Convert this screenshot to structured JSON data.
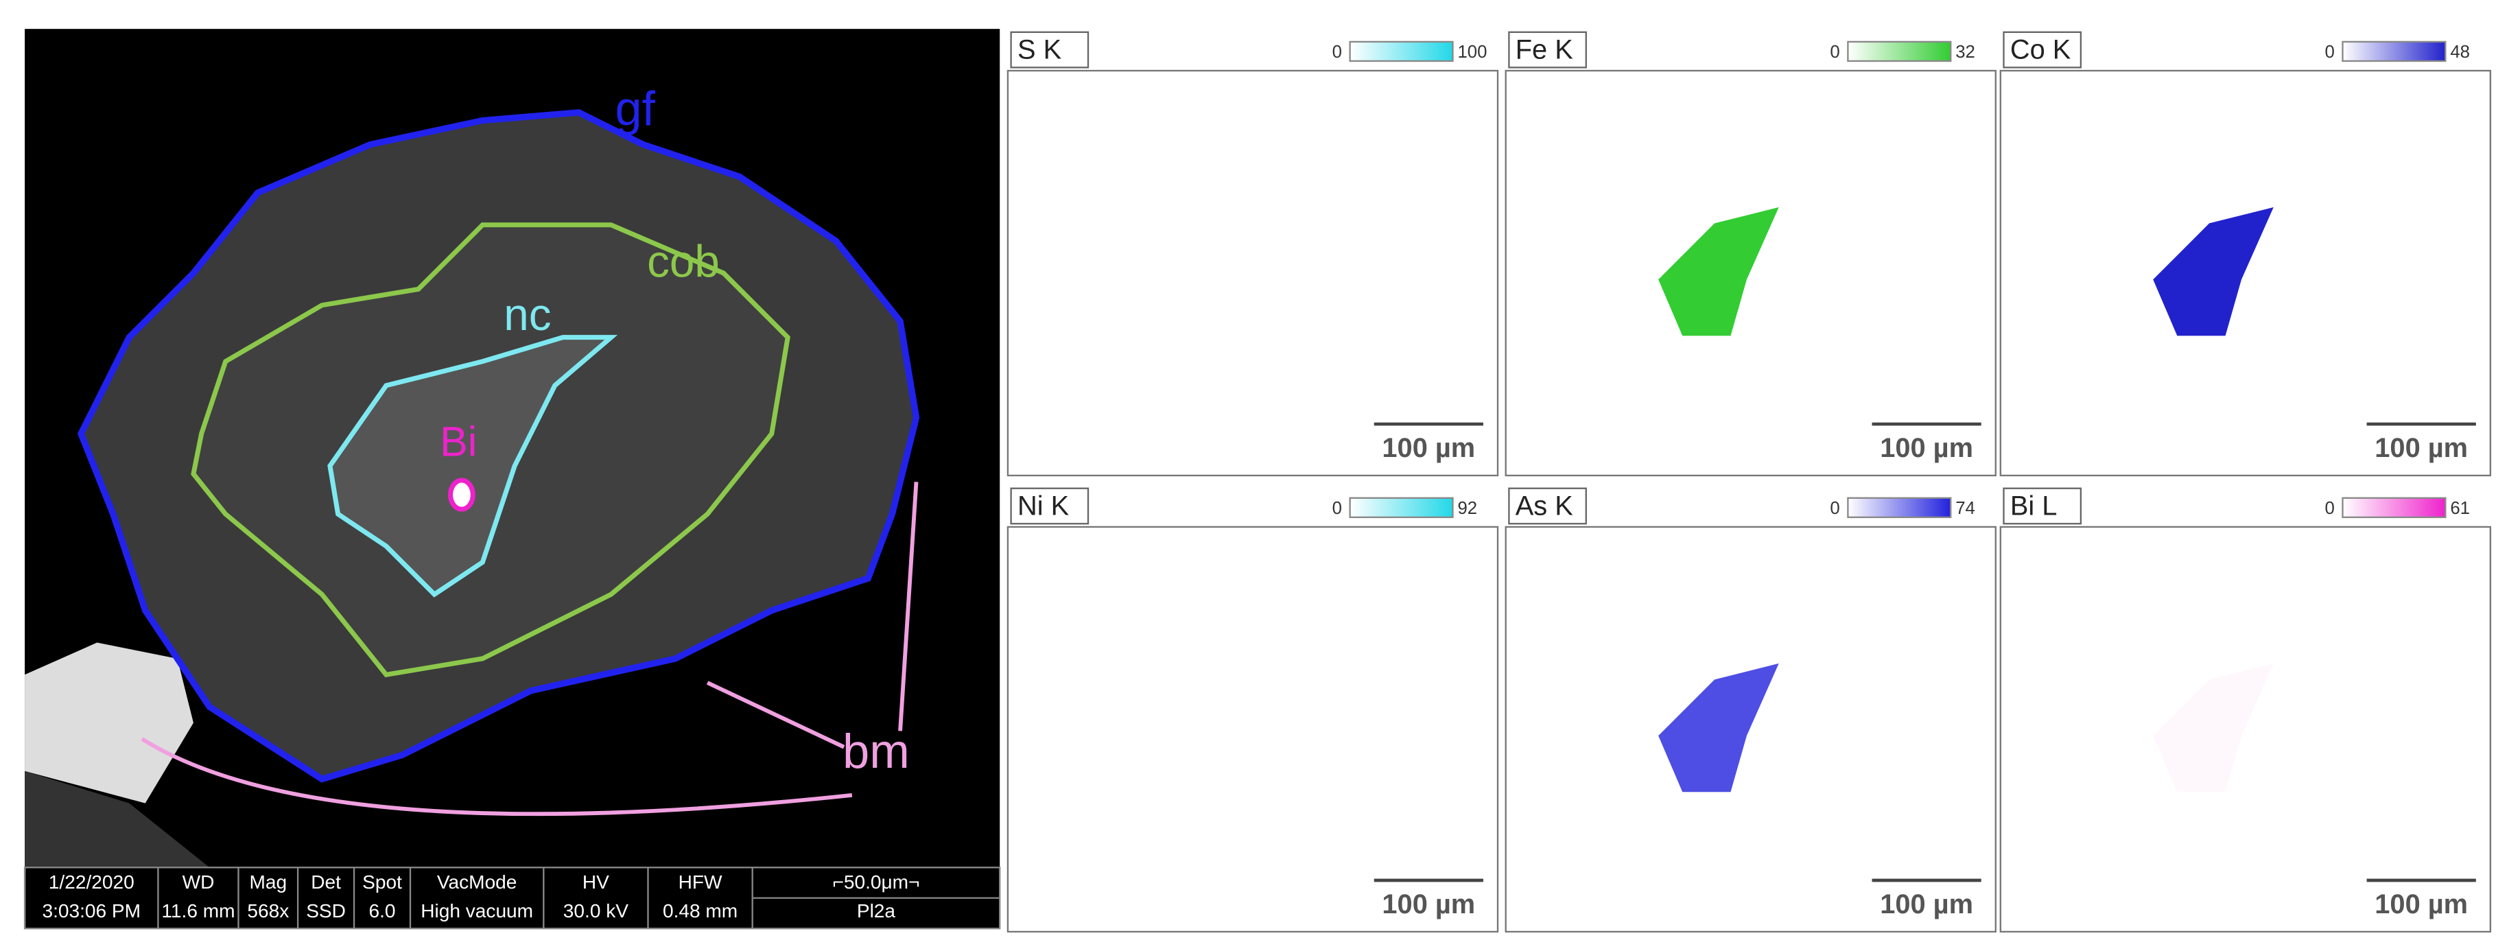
{
  "sem_image": {
    "labels": {
      "gf": "gf",
      "cob": "cob",
      "nc": "nc",
      "bi": "Bi",
      "bm": "bm"
    },
    "info_bar": {
      "headers": [
        "1/22/2020",
        "WD",
        "Mag",
        "Det",
        "Spot",
        "VacMode",
        "HV",
        "HFW",
        "⌐50.0μm¬"
      ],
      "values": [
        "3:03:06 PM",
        "11.6 mm",
        "568x",
        "SSD",
        "6.0",
        "High vacuum",
        "30.0 kV",
        "0.48 mm",
        "Pl2a"
      ]
    }
  },
  "maps": [
    {
      "element": "S K",
      "min": 0,
      "max": 100,
      "scale_bar": "100 µm",
      "color": "#22d8e8"
    },
    {
      "element": "Fe K",
      "min": 0,
      "max": 32,
      "scale_bar": "100 µm",
      "color": "#33cc33"
    },
    {
      "element": "Co K",
      "min": 0,
      "max": 48,
      "scale_bar": "100 µm",
      "color": "#2222cc"
    },
    {
      "element": "Ni K",
      "min": 0,
      "max": 92,
      "scale_bar": "100 µm",
      "color": "#22d8e8"
    },
    {
      "element": "As K",
      "min": 0,
      "max": 74,
      "scale_bar": "100 µm",
      "color": "#2222dd"
    },
    {
      "element": "Bi L",
      "min": 0,
      "max": 61,
      "scale_bar": "100 µm",
      "color": "#ee22cc"
    }
  ]
}
